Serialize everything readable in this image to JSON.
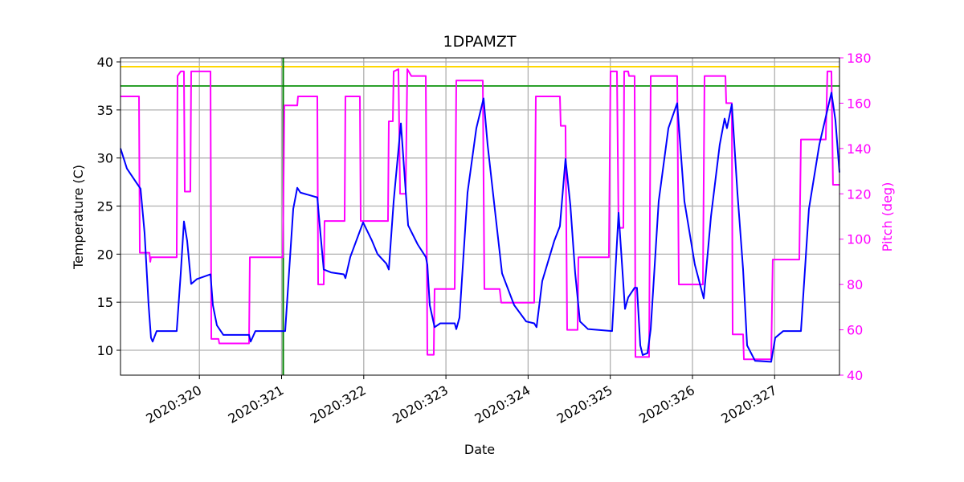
{
  "chart_data": {
    "type": "line",
    "title": "1DPAMZT",
    "xlabel": "Date",
    "ylabel": "Temperature (C)",
    "y2label": "Pitch (deg)",
    "xlim": [
      319.04,
      327.789
    ],
    "ylim": [
      7.41,
      40.42
    ],
    "y2lim": [
      40,
      180
    ],
    "xticks": [
      {
        "value": 320,
        "label": "2020:320"
      },
      {
        "value": 321,
        "label": "2020:321"
      },
      {
        "value": 322,
        "label": "2020:322"
      },
      {
        "value": 323,
        "label": "2020:323"
      },
      {
        "value": 324,
        "label": "2020:324"
      },
      {
        "value": 325,
        "label": "2020:325"
      },
      {
        "value": 326,
        "label": "2020:326"
      },
      {
        "value": 327,
        "label": "2020:327"
      }
    ],
    "yticks": [
      10,
      15,
      20,
      25,
      30,
      35,
      40
    ],
    "y2ticks": [
      40,
      60,
      80,
      100,
      120,
      140,
      160,
      180
    ],
    "y2color": "#ff00ff",
    "grid": true,
    "hlines": [
      {
        "value": 39.5,
        "color": "#ffd700"
      },
      {
        "value": 37.5,
        "color": "#2ca02c"
      }
    ],
    "vlines": [
      {
        "value": 321.02,
        "color": "#008000"
      }
    ],
    "series": [
      {
        "color": "#0000ff",
        "axis": "y",
        "x": [
          319.04,
          319.118,
          319.236,
          319.284,
          319.333,
          319.382,
          319.411,
          319.431,
          319.48,
          319.724,
          319.773,
          319.812,
          319.851,
          319.9,
          319.969,
          320.135,
          320.164,
          320.213,
          320.291,
          320.604,
          320.624,
          320.682,
          321.044,
          321.142,
          321.191,
          321.23,
          321.435,
          321.464,
          321.513,
          321.601,
          321.758,
          321.777,
          321.836,
          321.992,
          322.1,
          322.168,
          322.276,
          322.305,
          322.364,
          322.452,
          322.491,
          322.54,
          322.657,
          322.755,
          322.774,
          322.803,
          322.862,
          322.931,
          323.107,
          323.126,
          323.165,
          323.263,
          323.37,
          323.458,
          323.507,
          323.605,
          323.683,
          323.83,
          323.976,
          324.074,
          324.103,
          324.172,
          324.319,
          324.387,
          324.455,
          324.514,
          324.573,
          324.631,
          324.729,
          325.022,
          325.101,
          325.179,
          325.218,
          325.296,
          325.325,
          325.365,
          325.394,
          325.453,
          325.492,
          325.589,
          325.707,
          325.814,
          325.902,
          326.029,
          326.137,
          326.225,
          326.332,
          326.391,
          326.42,
          326.479,
          326.547,
          326.616,
          326.665,
          326.762,
          326.958,
          327.007,
          327.105,
          327.32,
          327.417,
          327.544,
          327.691,
          327.74,
          327.789
        ],
        "values": [
          31.0,
          28.9,
          27.4,
          26.8,
          22.2,
          14.7,
          11.3,
          10.9,
          12.0,
          12.0,
          18.0,
          23.4,
          21.4,
          16.9,
          17.4,
          17.9,
          14.7,
          12.6,
          11.6,
          11.6,
          10.9,
          12.0,
          12.0,
          24.7,
          26.9,
          26.4,
          25.9,
          23.0,
          18.4,
          18.1,
          17.9,
          17.5,
          19.7,
          23.3,
          21.4,
          20.0,
          19.0,
          18.4,
          25.5,
          33.6,
          28.9,
          23.0,
          21.0,
          19.7,
          18.9,
          14.7,
          12.4,
          12.8,
          12.8,
          12.2,
          13.4,
          26.4,
          33.1,
          36.2,
          31.4,
          23.9,
          18.0,
          14.7,
          13.0,
          12.8,
          12.4,
          17.2,
          21.4,
          22.9,
          29.9,
          25.1,
          18.0,
          13.0,
          12.2,
          12.0,
          24.3,
          14.3,
          15.5,
          16.5,
          16.5,
          10.5,
          9.5,
          9.7,
          12.2,
          25.5,
          33.1,
          35.7,
          25.5,
          18.9,
          15.4,
          23.9,
          31.4,
          34.1,
          33.1,
          35.6,
          26.4,
          18.4,
          10.5,
          8.9,
          8.8,
          11.3,
          12.0,
          12.0,
          24.7,
          31.4,
          36.8,
          33.9,
          28.5
        ]
      },
      {
        "color": "#ff00ff",
        "axis": "y2",
        "x": [
          319.04,
          319.265,
          319.275,
          319.392,
          319.402,
          319.411,
          319.724,
          319.734,
          319.773,
          319.812,
          319.822,
          319.89,
          319.9,
          320.135,
          320.145,
          320.233,
          320.242,
          320.604,
          320.614,
          321.015,
          321.034,
          321.191,
          321.2,
          321.435,
          321.445,
          321.513,
          321.523,
          321.767,
          321.777,
          321.953,
          321.963,
          322.295,
          322.305,
          322.354,
          322.364,
          322.422,
          322.442,
          322.51,
          322.53,
          322.579,
          322.755,
          322.774,
          322.852,
          322.862,
          323.107,
          323.126,
          323.449,
          323.468,
          323.654,
          323.673,
          324.074,
          324.094,
          324.387,
          324.397,
          324.455,
          324.475,
          324.602,
          324.612,
          324.983,
          325.003,
          325.081,
          325.101,
          325.159,
          325.169,
          325.218,
          325.228,
          325.296,
          325.306,
          325.472,
          325.492,
          325.814,
          325.834,
          326.127,
          326.147,
          326.401,
          326.411,
          326.479,
          326.489,
          326.616,
          326.626,
          326.958,
          326.977,
          327.3,
          327.32,
          327.622,
          327.642,
          327.691,
          327.71,
          327.789
        ],
        "values": [
          163,
          163,
          94,
          94,
          90,
          92,
          92,
          172,
          174,
          174,
          121,
          121,
          174,
          174,
          56,
          56,
          54,
          54,
          92,
          92,
          159,
          159,
          163,
          163,
          80,
          80,
          108,
          108,
          163,
          163,
          108,
          108,
          152,
          152,
          174,
          175,
          120,
          120,
          175,
          172,
          172,
          49,
          49,
          78,
          78,
          170,
          170,
          78,
          78,
          72,
          72,
          163,
          163,
          150,
          150,
          60,
          60,
          92,
          92,
          174,
          174,
          105,
          105,
          174,
          174,
          172,
          172,
          48,
          48,
          172,
          172,
          80,
          80,
          172,
          172,
          160,
          160,
          58,
          58,
          47,
          47,
          91,
          91,
          144,
          144,
          174,
          174,
          124,
          124
        ]
      }
    ]
  }
}
